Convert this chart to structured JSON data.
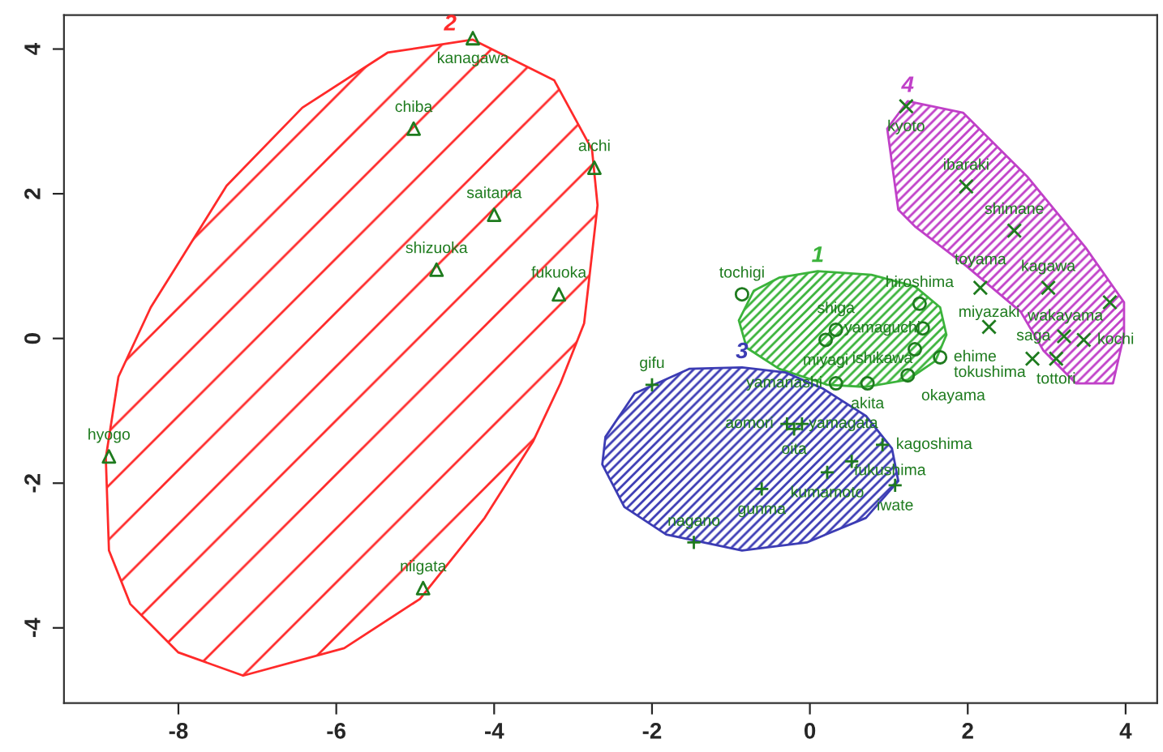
{
  "chart_data": {
    "type": "scatter",
    "xlim": [
      -9.45,
      4.4
    ],
    "ylim": [
      -5.04,
      4.47
    ],
    "xticks": [
      -8,
      -6,
      -4,
      -2,
      0,
      2,
      4
    ],
    "yticks": [
      -4,
      -2,
      0,
      2,
      4
    ],
    "grid": false,
    "legend": false,
    "series": [
      {
        "type": "area",
        "color": "#ff2a2a",
        "x": [
          -4.27,
          -3.24,
          -2.76,
          -2.69,
          -2.86,
          -3.16,
          -3.51,
          -4.12,
          -4.94,
          -5.9,
          -7.18,
          -8.0,
          -8.61,
          -8.88,
          -8.92,
          -8.76,
          -8.35,
          -8.0,
          -7.39,
          -6.43,
          -5.35
        ],
        "values": [
          4.13,
          3.57,
          2.61,
          1.84,
          0.21,
          -0.62,
          -1.43,
          -2.48,
          -3.6,
          -4.28,
          -4.66,
          -4.34,
          -3.67,
          -2.93,
          -1.65,
          -0.53,
          0.43,
          1.04,
          2.11,
          3.19,
          3.95
        ]
      },
      {
        "type": "area",
        "color": "#3bb33b",
        "x": [
          0.1,
          0.78,
          1.33,
          1.65,
          1.73,
          1.59,
          1.24,
          0.71,
          0.22,
          -0.39,
          -0.8,
          -0.9,
          -0.71,
          -0.39
        ],
        "values": [
          0.93,
          0.88,
          0.72,
          0.43,
          0.05,
          -0.31,
          -0.57,
          -0.67,
          -0.64,
          -0.42,
          -0.13,
          0.25,
          0.66,
          0.84
        ]
      },
      {
        "type": "area",
        "color": "#3c3cb4",
        "x": [
          -0.86,
          -0.31,
          0.16,
          0.71,
          1.04,
          1.12,
          0.71,
          -0.04,
          -0.86,
          -1.82,
          -2.35,
          -2.63,
          -2.59,
          -2.22,
          -1.53
        ],
        "values": [
          -0.4,
          -0.47,
          -0.69,
          -1.07,
          -1.52,
          -1.97,
          -2.48,
          -2.82,
          -2.93,
          -2.71,
          -2.33,
          -1.74,
          -1.36,
          -0.76,
          -0.42
        ]
      },
      {
        "type": "area",
        "color": "#c040c8",
        "x": [
          1.24,
          1.94,
          2.76,
          3.49,
          3.98,
          3.98,
          3.84,
          3.37,
          2.96,
          2.67,
          1.94,
          1.33,
          1.12,
          0.98
        ],
        "values": [
          3.28,
          3.12,
          2.23,
          1.26,
          0.5,
          0.05,
          -0.62,
          -0.62,
          -0.17,
          0.37,
          1.04,
          1.55,
          1.78,
          2.9
        ]
      },
      {
        "type": "scatter",
        "marker": "triangle",
        "color": "#1e7b1e",
        "x": [
          -4.27,
          -5.02,
          -2.73,
          -4.0,
          -4.73,
          -3.18,
          -8.88,
          -4.9
        ],
        "values": [
          4.15,
          2.9,
          2.36,
          1.71,
          0.95,
          0.61,
          -1.63,
          -3.45
        ],
        "value_labels": [
          "kanagawa",
          "chiba",
          "aichi",
          "saitama",
          "shizuoka",
          "fukuoka",
          "hyogo",
          "niigata"
        ]
      },
      {
        "type": "scatter",
        "marker": "circle",
        "color": "#1e7b1e",
        "x": [
          -0.86,
          1.39,
          0.33,
          0.2,
          1.43,
          1.33,
          1.65,
          1.24,
          0.33,
          0.73
        ],
        "values": [
          0.61,
          0.48,
          0.12,
          -0.02,
          0.14,
          -0.15,
          -0.26,
          -0.51,
          -0.62,
          -0.62
        ],
        "value_labels": [
          "tochigi",
          "hiroshima",
          "shiga",
          "miyagi",
          "yamaguchi",
          "ishikawa",
          "ehime",
          "okayama",
          "yamanashi",
          "akita"
        ]
      },
      {
        "type": "scatter",
        "marker": "plus",
        "color": "#1e7b1e",
        "x": [
          -2.0,
          -0.29,
          -0.1,
          -0.2,
          0.92,
          0.53,
          0.22,
          1.08,
          -0.61,
          -1.47
        ],
        "values": [
          -0.64,
          -1.18,
          -1.18,
          -1.25,
          -1.47,
          -1.7,
          -1.85,
          -2.03,
          -2.08,
          -2.82
        ],
        "value_labels": [
          "gifu",
          "aomori",
          "yamagata",
          "oita",
          "kagoshima",
          "fukushima",
          "kumamoto",
          "iwate",
          "gunma",
          "nagano"
        ]
      },
      {
        "type": "scatter",
        "marker": "cross",
        "color": "#1e7b1e",
        "x": [
          1.22,
          1.98,
          2.59,
          2.16,
          3.02,
          3.8,
          2.27,
          3.22,
          3.47,
          2.82,
          3.12
        ],
        "values": [
          3.21,
          2.1,
          1.49,
          0.7,
          0.7,
          0.5,
          0.16,
          0.03,
          -0.02,
          -0.28,
          -0.28
        ],
        "value_labels": [
          "kyoto",
          "ibaraki",
          "shimane",
          "toyama",
          "kagawa",
          "wakayama",
          "miyazaki",
          "saga",
          "kochi",
          "tokushima",
          "tottori"
        ]
      }
    ],
    "annotations": [
      "2",
      "1",
      "3",
      "4"
    ]
  }
}
